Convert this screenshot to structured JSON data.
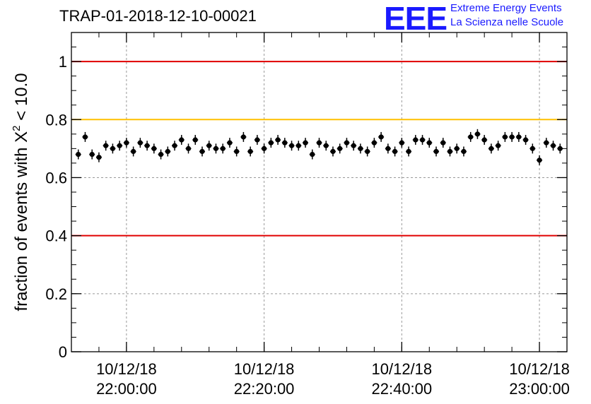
{
  "title": "TRAP-01-2018-12-10-00021",
  "logo": {
    "mark": "EEE",
    "line1": "Extreme Energy Events",
    "line2": "La Scienza nelle Scuole",
    "color": "#1a1aff"
  },
  "chart_data": {
    "type": "scatter",
    "title": "TRAP-01-2018-12-10-00021",
    "ylabel": "fraction of events with X² < 10.0",
    "xlabel": "",
    "x_unit": "minutes",
    "xlim": [
      "2018-12-10 21:52:00",
      "2018-12-10 23:04:00"
    ],
    "ylim": [
      0,
      1.1
    ],
    "grid": true,
    "x_ticks": [
      {
        "date": "10/12/18",
        "time": "22:00:00"
      },
      {
        "date": "10/12/18",
        "time": "22:20:00"
      },
      {
        "date": "10/12/18",
        "time": "22:40:00"
      },
      {
        "date": "10/12/18",
        "time": "23:00:00"
      }
    ],
    "y_ticks": [
      "0",
      "0.2",
      "0.4",
      "0.6",
      "0.8",
      "1"
    ],
    "reference_lines": [
      {
        "y": 1.0,
        "color": "#e00000"
      },
      {
        "y": 0.8,
        "color": "#ffc000"
      },
      {
        "y": 0.4,
        "color": "#e00000"
      }
    ],
    "series": [
      {
        "marker_color": "#000000",
        "x": [
          "21:53",
          "21:54",
          "21:55",
          "21:56",
          "21:57",
          "21:58",
          "21:59",
          "22:00",
          "22:01",
          "22:02",
          "22:03",
          "22:04",
          "22:05",
          "22:06",
          "22:07",
          "22:08",
          "22:09",
          "22:10",
          "22:11",
          "22:12",
          "22:13",
          "22:14",
          "22:15",
          "22:16",
          "22:17",
          "22:18",
          "22:19",
          "22:20",
          "22:21",
          "22:22",
          "22:23",
          "22:24",
          "22:25",
          "22:26",
          "22:27",
          "22:28",
          "22:29",
          "22:30",
          "22:31",
          "22:32",
          "22:33",
          "22:34",
          "22:35",
          "22:36",
          "22:37",
          "22:38",
          "22:39",
          "22:40",
          "22:41",
          "22:42",
          "22:43",
          "22:44",
          "22:45",
          "22:46",
          "22:47",
          "22:48",
          "22:49",
          "22:50",
          "22:51",
          "22:52",
          "22:53",
          "22:54",
          "22:55",
          "22:56",
          "22:57",
          "22:58",
          "22:59",
          "23:00",
          "23:01",
          "23:02",
          "23:03"
        ],
        "y": [
          0.68,
          0.74,
          0.68,
          0.67,
          0.71,
          0.7,
          0.71,
          0.72,
          0.69,
          0.72,
          0.71,
          0.7,
          0.68,
          0.69,
          0.71,
          0.73,
          0.7,
          0.73,
          0.69,
          0.71,
          0.7,
          0.7,
          0.72,
          0.69,
          0.74,
          0.69,
          0.73,
          0.7,
          0.72,
          0.73,
          0.72,
          0.71,
          0.71,
          0.72,
          0.68,
          0.72,
          0.71,
          0.69,
          0.7,
          0.72,
          0.71,
          0.7,
          0.69,
          0.72,
          0.74,
          0.7,
          0.69,
          0.72,
          0.69,
          0.73,
          0.73,
          0.72,
          0.69,
          0.72,
          0.69,
          0.7,
          0.69,
          0.74,
          0.75,
          0.73,
          0.7,
          0.71,
          0.74,
          0.74,
          0.74,
          0.73,
          0.7,
          0.66,
          0.72,
          0.71,
          0.7
        ],
        "error": 0.017
      }
    ]
  }
}
